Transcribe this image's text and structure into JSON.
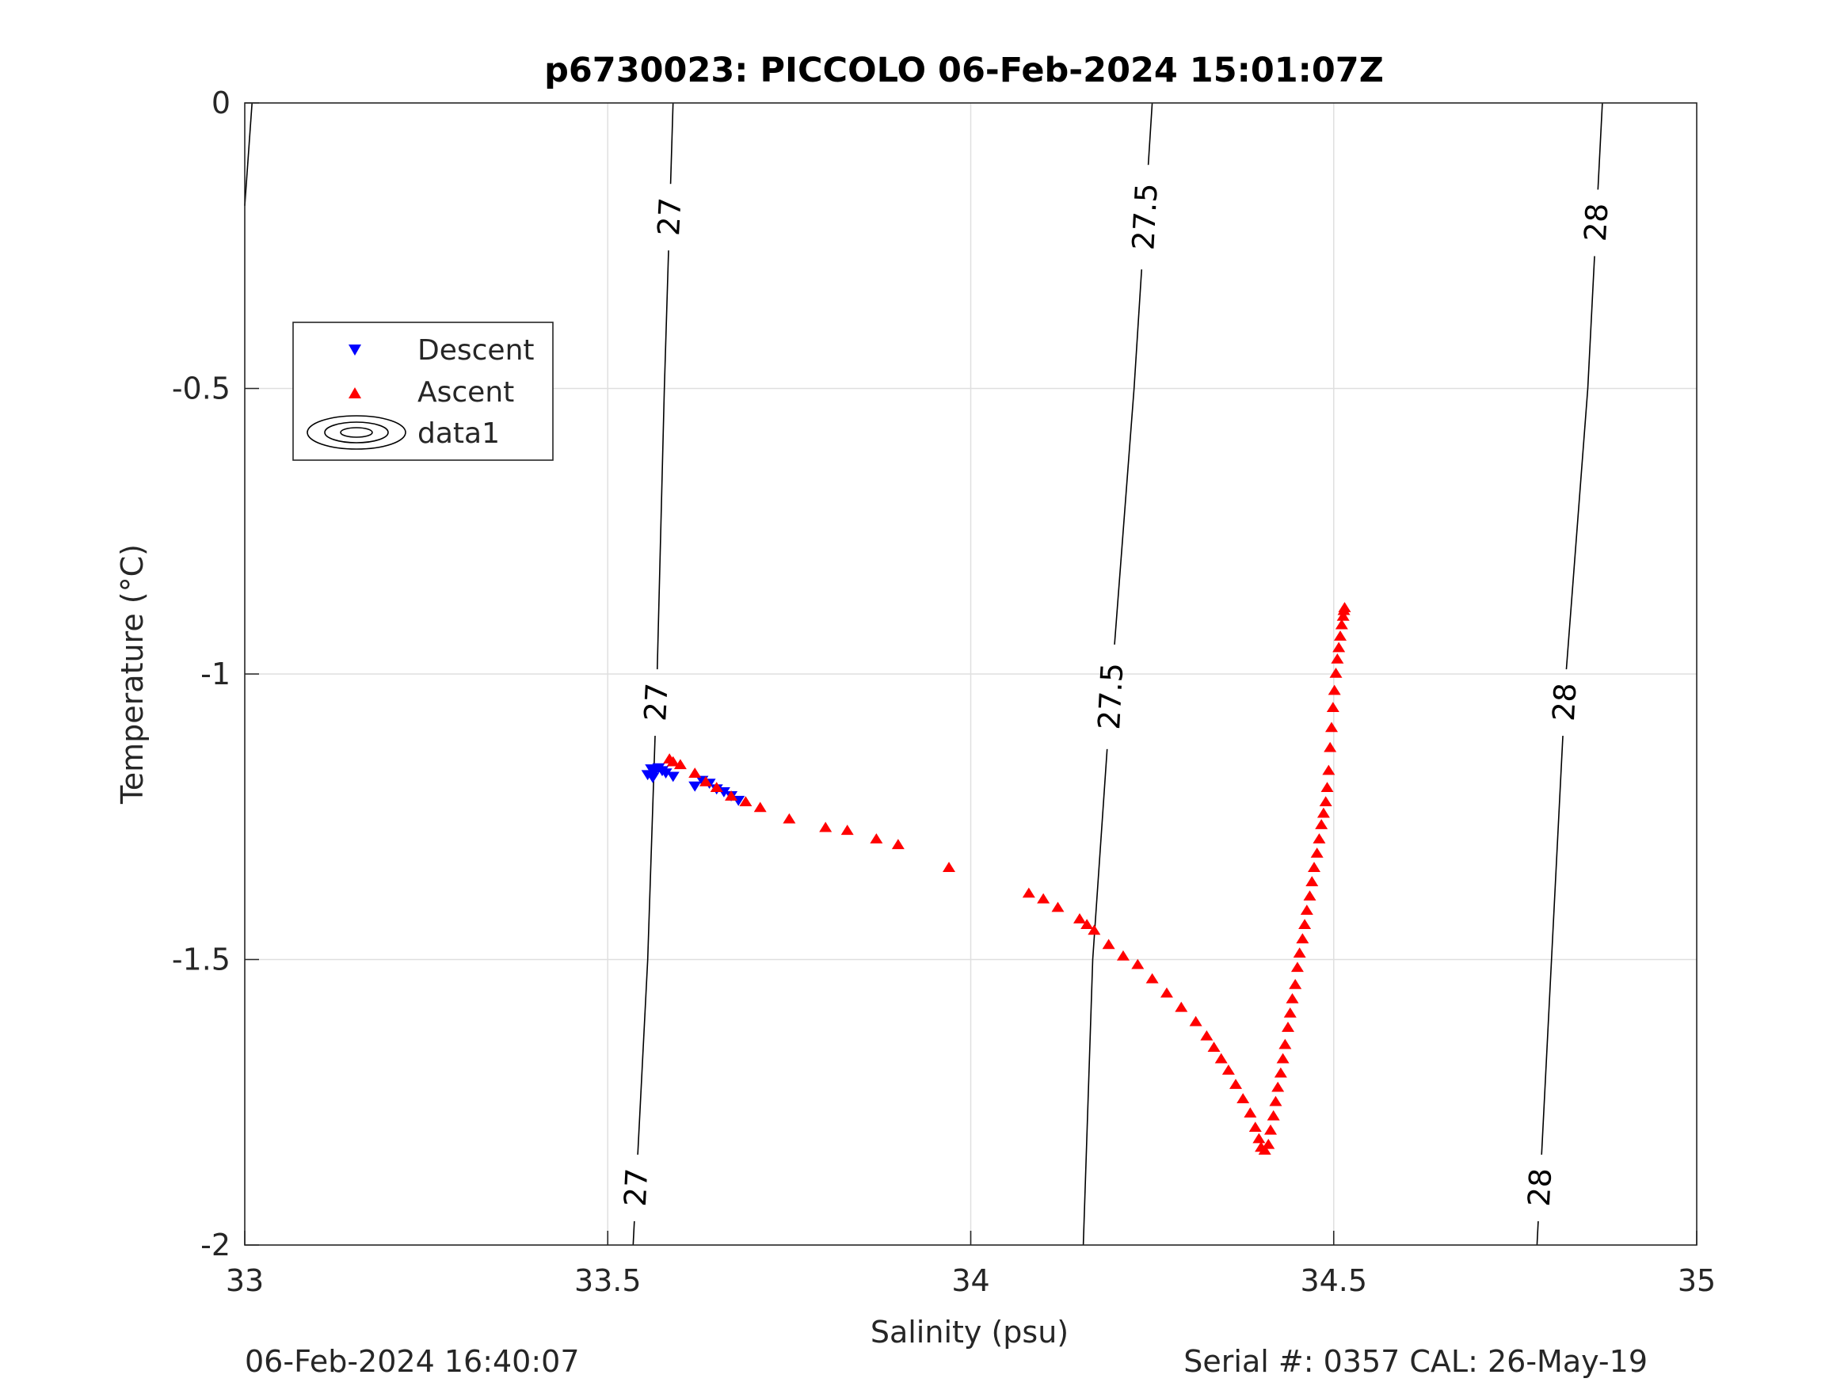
{
  "chart_data": {
    "type": "scatter",
    "title": "p6730023: PICCOLO 06-Feb-2024 15:01:07Z",
    "xlabel": "Salinity (psu)",
    "ylabel": "Temperature (°C)",
    "xlim": [
      33,
      35
    ],
    "ylim": [
      -2,
      0
    ],
    "xticks": [
      33,
      33.5,
      34,
      34.5,
      35
    ],
    "xtick_labels": [
      "33",
      "33.5",
      "34",
      "34.5",
      "35"
    ],
    "yticks": [
      0,
      -0.5,
      -1,
      -1.5,
      -2
    ],
    "ytick_labels": [
      "0",
      "-0.5",
      "-1",
      "-1.5",
      "-2"
    ],
    "grid": true,
    "legend_position": "upper-left",
    "legend": [
      "Descent",
      "Ascent",
      "data1"
    ],
    "series": [
      {
        "name": "Descent",
        "marker": "triangle-down",
        "color": "#0000ff",
        "points": [
          [
            33.555,
            -1.175
          ],
          [
            33.56,
            -1.165
          ],
          [
            33.565,
            -1.17
          ],
          [
            33.57,
            -1.163
          ],
          [
            33.575,
            -1.168
          ],
          [
            33.562,
            -1.18
          ],
          [
            33.58,
            -1.172
          ],
          [
            33.59,
            -1.178
          ],
          [
            33.62,
            -1.195
          ],
          [
            33.63,
            -1.185
          ],
          [
            33.64,
            -1.19
          ],
          [
            33.65,
            -1.2
          ],
          [
            33.66,
            -1.205
          ],
          [
            33.67,
            -1.212
          ],
          [
            33.68,
            -1.22
          ]
        ]
      },
      {
        "name": "Ascent",
        "marker": "triangle-up",
        "color": "#ff0000",
        "points": [
          [
            33.585,
            -1.15
          ],
          [
            33.59,
            -1.155
          ],
          [
            33.6,
            -1.16
          ],
          [
            33.62,
            -1.175
          ],
          [
            33.635,
            -1.19
          ],
          [
            33.65,
            -1.2
          ],
          [
            33.67,
            -1.215
          ],
          [
            33.69,
            -1.225
          ],
          [
            33.71,
            -1.235
          ],
          [
            33.75,
            -1.255
          ],
          [
            33.8,
            -1.27
          ],
          [
            33.83,
            -1.275
          ],
          [
            33.87,
            -1.29
          ],
          [
            33.9,
            -1.3
          ],
          [
            33.97,
            -1.34
          ],
          [
            34.08,
            -1.385
          ],
          [
            34.1,
            -1.395
          ],
          [
            34.12,
            -1.41
          ],
          [
            34.15,
            -1.43
          ],
          [
            34.16,
            -1.44
          ],
          [
            34.17,
            -1.45
          ],
          [
            34.19,
            -1.475
          ],
          [
            34.21,
            -1.495
          ],
          [
            34.23,
            -1.51
          ],
          [
            34.25,
            -1.535
          ],
          [
            34.27,
            -1.56
          ],
          [
            34.29,
            -1.585
          ],
          [
            34.31,
            -1.61
          ],
          [
            34.325,
            -1.635
          ],
          [
            34.335,
            -1.655
          ],
          [
            34.345,
            -1.675
          ],
          [
            34.355,
            -1.695
          ],
          [
            34.365,
            -1.72
          ],
          [
            34.375,
            -1.745
          ],
          [
            34.385,
            -1.77
          ],
          [
            34.392,
            -1.795
          ],
          [
            34.397,
            -1.815
          ],
          [
            34.4,
            -1.83
          ],
          [
            34.405,
            -1.835
          ],
          [
            34.41,
            -1.825
          ],
          [
            34.413,
            -1.8
          ],
          [
            34.417,
            -1.775
          ],
          [
            34.42,
            -1.75
          ],
          [
            34.423,
            -1.725
          ],
          [
            34.427,
            -1.7
          ],
          [
            34.43,
            -1.675
          ],
          [
            34.433,
            -1.65
          ],
          [
            34.437,
            -1.62
          ],
          [
            34.44,
            -1.595
          ],
          [
            34.443,
            -1.57
          ],
          [
            34.447,
            -1.545
          ],
          [
            34.45,
            -1.515
          ],
          [
            34.453,
            -1.49
          ],
          [
            34.457,
            -1.465
          ],
          [
            34.46,
            -1.44
          ],
          [
            34.463,
            -1.415
          ],
          [
            34.467,
            -1.39
          ],
          [
            34.47,
            -1.365
          ],
          [
            34.473,
            -1.34
          ],
          [
            34.477,
            -1.315
          ],
          [
            34.48,
            -1.29
          ],
          [
            34.483,
            -1.265
          ],
          [
            34.486,
            -1.245
          ],
          [
            34.489,
            -1.225
          ],
          [
            34.491,
            -1.2
          ],
          [
            34.493,
            -1.17
          ],
          [
            34.495,
            -1.13
          ],
          [
            34.497,
            -1.095
          ],
          [
            34.499,
            -1.06
          ],
          [
            34.501,
            -1.03
          ],
          [
            34.503,
            -1.0
          ],
          [
            34.505,
            -0.975
          ],
          [
            34.507,
            -0.955
          ],
          [
            34.509,
            -0.935
          ],
          [
            34.511,
            -0.915
          ],
          [
            34.513,
            -0.9
          ],
          [
            34.514,
            -0.89
          ],
          [
            34.515,
            -0.885
          ]
        ]
      }
    ],
    "contours": [
      {
        "label": "27",
        "path": [
          [
            33.535,
            -2.0
          ],
          [
            33.555,
            -1.5
          ],
          [
            33.568,
            -1.0
          ],
          [
            33.578,
            -0.5
          ],
          [
            33.59,
            0.0
          ]
        ],
        "label_points": [
          [
            33.545,
            -1.9
          ],
          [
            33.58,
            -0.2
          ],
          [
            33.58,
            -1.05
          ]
        ]
      },
      {
        "label": "27.5",
        "path": [
          [
            34.155,
            -2.0
          ],
          [
            34.168,
            -1.5
          ],
          [
            34.195,
            -1.0
          ],
          [
            34.225,
            -0.5
          ],
          [
            34.25,
            0.0
          ]
        ],
        "label_points": [
          [
            34.19,
            -1.04
          ],
          [
            34.245,
            -0.2
          ]
        ]
      },
      {
        "label": "28",
        "path": [
          [
            34.78,
            -2.0
          ],
          [
            34.8,
            -1.5
          ],
          [
            34.82,
            -1.0
          ],
          [
            34.85,
            -0.5
          ],
          [
            34.87,
            0.0
          ]
        ],
        "label_points": [
          [
            34.79,
            -1.9
          ],
          [
            34.815,
            -1.05
          ],
          [
            34.86,
            -0.21
          ]
        ]
      },
      {
        "label": "",
        "path": [
          [
            33.0,
            -0.18
          ],
          [
            33.01,
            0.0
          ]
        ],
        "label_points": []
      }
    ]
  },
  "footer": {
    "left": "06-Feb-2024 16:40:07",
    "right": "Serial #: 0357  CAL: 26-May-19"
  }
}
